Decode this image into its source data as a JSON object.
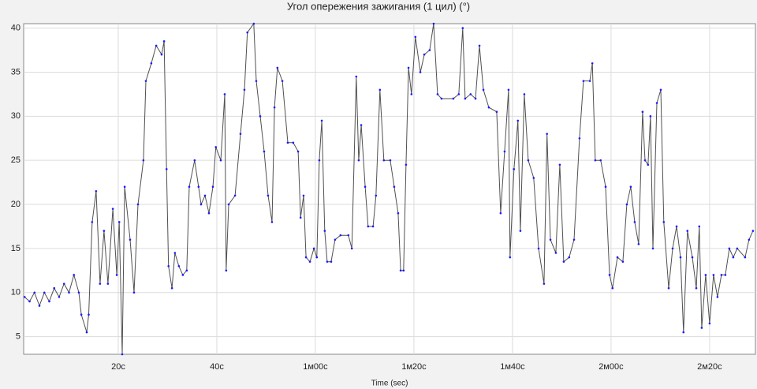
{
  "chart_data": {
    "type": "line",
    "title": "Угол опережения зажигания (1 цил) (°)",
    "x_label": "Time (sec)",
    "x": [
      1,
      2,
      3,
      4,
      5,
      6,
      7,
      8,
      9,
      10,
      11,
      12,
      12.5,
      13.6,
      14,
      14.7,
      15.5,
      16.3,
      17.1,
      17.9,
      18.9,
      19.7,
      20.2,
      20.8,
      21.3,
      22.4,
      23.2,
      24,
      25.1,
      25.6,
      26.7,
      27.7,
      28.8,
      29.3,
      29.8,
      30.2,
      30.9,
      31.5,
      32.3,
      33.1,
      33.9,
      34.4,
      35.5,
      36.3,
      36.8,
      37.6,
      38.4,
      39.2,
      39.8,
      40.8,
      41.6,
      41.9,
      42.4,
      43.7,
      44.8,
      45.6,
      46.2,
      47.5,
      48,
      48.8,
      49.6,
      50.4,
      51.2,
      51.7,
      52.3,
      53.3,
      54.4,
      55.5,
      56.5,
      57,
      57.6,
      58.1,
      58.9,
      59.7,
      60.3,
      60.8,
      61.3,
      61.9,
      62.4,
      63.2,
      64,
      65.1,
      66.7,
      67.4,
      68.3,
      68.8,
      69.3,
      70.1,
      70.7,
      71.7,
      72.3,
      73.1,
      73.9,
      75.2,
      76,
      76.8,
      77.3,
      77.9,
      78.4,
      78.9,
      79.5,
      80.3,
      81.3,
      82.1,
      83.2,
      84,
      84.8,
      85.6,
      88,
      89.1,
      89.9,
      90.4,
      91.5,
      92.5,
      93.3,
      94.1,
      95.2,
      96.8,
      97.6,
      98.4,
      99.2,
      99.5,
      100.3,
      101.1,
      101.6,
      102.4,
      103.2,
      104.3,
      105.3,
      106.4,
      107,
      107.7,
      108.8,
      109.6,
      110.4,
      111.5,
      112.5,
      113.6,
      114.4,
      115.7,
      116.2,
      116.8,
      117.9,
      118.9,
      119.7,
      120.3,
      121.3,
      122.4,
      123.2,
      124,
      124.8,
      125.6,
      126.4,
      126.9,
      127.5,
      128,
      128.5,
      129.3,
      130.1,
      130.7,
      131.7,
      132.5,
      133.3,
      134.1,
      134.7,
      135.5,
      136.5,
      137.3,
      137.9,
      138.4,
      139.2,
      140,
      140.8,
      141.6,
      142.4,
      143.2,
      144,
      144.8,
      145.6,
      147.2,
      148,
      148.8
    ],
    "values": [
      9.5,
      9,
      10,
      8.5,
      10,
      9,
      10.5,
      9.5,
      11,
      10,
      12,
      10,
      7.5,
      5.5,
      7.5,
      18,
      21.5,
      11,
      17,
      11,
      19.5,
      12,
      18,
      3,
      22,
      16,
      10,
      20,
      25,
      34,
      36,
      38,
      37,
      38.5,
      24,
      13,
      10.5,
      14.5,
      13,
      12,
      12.5,
      22,
      25,
      22,
      20,
      21,
      19,
      22,
      26.5,
      25,
      32.5,
      12.5,
      20,
      21,
      28,
      33,
      39.5,
      40.5,
      34,
      30,
      26,
      21,
      18,
      31,
      35.5,
      34,
      27,
      27,
      26,
      18.5,
      21,
      14,
      13.5,
      15,
      14,
      25,
      29.5,
      17,
      13.5,
      13.5,
      16,
      16.5,
      16.5,
      15,
      34.5,
      25,
      29,
      22,
      17.5,
      17.5,
      21,
      33,
      25,
      25,
      22,
      19,
      12.5,
      12.5,
      24.5,
      35.5,
      32.5,
      39,
      35,
      37,
      37.5,
      40.5,
      32.5,
      32,
      32,
      32.5,
      40,
      32,
      32.5,
      32,
      38,
      33,
      31,
      30.5,
      19,
      26,
      33,
      14,
      24,
      29.5,
      17,
      32.5,
      25,
      23,
      15,
      11,
      28,
      16,
      14.5,
      24.5,
      13.5,
      14,
      16,
      27.5,
      34,
      34,
      36,
      25,
      25,
      22,
      12,
      10.5,
      14,
      13.5,
      20,
      22,
      18,
      15.5,
      30.5,
      25,
      24.5,
      30,
      15,
      31.5,
      33,
      18,
      10.5,
      15,
      17.5,
      14,
      5.5,
      17,
      14,
      10.5,
      17.5,
      6,
      12,
      6.5,
      12,
      9.5,
      12,
      12,
      15,
      14,
      15,
      14,
      16,
      17
    ],
    "color": "#505050",
    "marker_color": "#1a1aff",
    "xlim": [
      0.8,
      149.3
    ],
    "ylim": [
      3,
      40.5
    ],
    "xticks": [
      {
        "value": 20,
        "label": "20с"
      },
      {
        "value": 40,
        "label": "40с"
      },
      {
        "value": 60,
        "label": "1м00с"
      },
      {
        "value": 80,
        "label": "1м20с"
      },
      {
        "value": 100,
        "label": "1м40с"
      },
      {
        "value": 120,
        "label": "2м00с"
      },
      {
        "value": 140,
        "label": "2м20с"
      }
    ],
    "yticks": [
      5,
      10,
      15,
      20,
      25,
      30,
      35,
      40
    ],
    "grid": true
  }
}
